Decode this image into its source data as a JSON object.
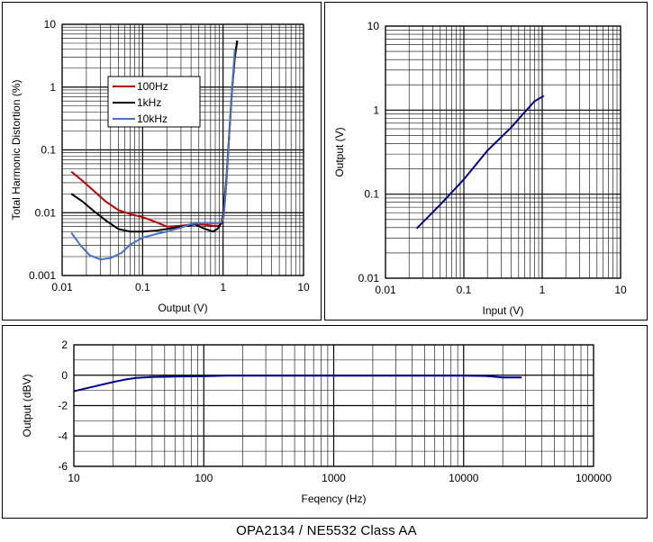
{
  "caption": "OPA2134 / NE5532   Class AA",
  "chart_data": [
    {
      "id": "thd",
      "type": "line",
      "xscale": "log",
      "yscale": "log",
      "xlim": [
        0.01,
        10
      ],
      "ylim": [
        0.001,
        10
      ],
      "xticks": [
        "0.01",
        "0.1",
        "1",
        "10"
      ],
      "yticks": [
        "0.001",
        "0.01",
        "0.1",
        "1",
        "10"
      ],
      "xlabel": "Output (V)",
      "ylabel": "Total Harmonic Distortion (%)",
      "grid": true,
      "legend": "upper-left",
      "series": [
        {
          "name": "100Hz",
          "color": "#c00000",
          "points": [
            [
              0.013,
              0.045
            ],
            [
              0.018,
              0.032
            ],
            [
              0.025,
              0.022
            ],
            [
              0.035,
              0.015
            ],
            [
              0.05,
              0.011
            ],
            [
              0.07,
              0.0095
            ],
            [
              0.1,
              0.0085
            ],
            [
              0.15,
              0.007
            ],
            [
              0.2,
              0.006
            ],
            [
              0.3,
              0.0062
            ],
            [
              0.45,
              0.0066
            ],
            [
              0.6,
              0.0064
            ],
            [
              0.75,
              0.0062
            ],
            [
              0.88,
              0.0062
            ],
            [
              0.96,
              0.0068
            ],
            [
              1.02,
              0.009
            ],
            [
              1.1,
              0.03
            ],
            [
              1.2,
              0.2
            ],
            [
              1.3,
              1.0
            ],
            [
              1.4,
              3.0
            ],
            [
              1.5,
              5.5
            ]
          ]
        },
        {
          "name": "1kHz",
          "color": "#000000",
          "points": [
            [
              0.013,
              0.02
            ],
            [
              0.018,
              0.015
            ],
            [
              0.025,
              0.0105
            ],
            [
              0.035,
              0.0075
            ],
            [
              0.05,
              0.0055
            ],
            [
              0.07,
              0.005
            ],
            [
              0.1,
              0.005
            ],
            [
              0.15,
              0.0052
            ],
            [
              0.2,
              0.0055
            ],
            [
              0.3,
              0.006
            ],
            [
              0.45,
              0.0065
            ],
            [
              0.6,
              0.0055
            ],
            [
              0.75,
              0.005
            ],
            [
              0.85,
              0.0055
            ],
            [
              0.93,
              0.0065
            ],
            [
              1.0,
              0.009
            ],
            [
              1.1,
              0.035
            ],
            [
              1.2,
              0.2
            ],
            [
              1.3,
              1.0
            ],
            [
              1.4,
              3.0
            ],
            [
              1.5,
              5.5
            ]
          ]
        },
        {
          "name": "10kHz",
          "color": "#4472c4",
          "points": [
            [
              0.013,
              0.0048
            ],
            [
              0.017,
              0.003
            ],
            [
              0.022,
              0.0021
            ],
            [
              0.03,
              0.0018
            ],
            [
              0.04,
              0.0019
            ],
            [
              0.055,
              0.0023
            ],
            [
              0.07,
              0.0031
            ],
            [
              0.1,
              0.004
            ],
            [
              0.15,
              0.0046
            ],
            [
              0.2,
              0.005
            ],
            [
              0.3,
              0.0058
            ],
            [
              0.4,
              0.0066
            ],
            [
              0.55,
              0.0068
            ],
            [
              0.7,
              0.0068
            ],
            [
              0.85,
              0.0068
            ],
            [
              0.95,
              0.007
            ],
            [
              1.02,
              0.009
            ],
            [
              1.1,
              0.03
            ],
            [
              1.2,
              0.2
            ],
            [
              1.3,
              1.0
            ],
            [
              1.4,
              4.0
            ]
          ]
        }
      ]
    },
    {
      "id": "io",
      "type": "line",
      "xscale": "log",
      "yscale": "log",
      "xlim": [
        0.01,
        10
      ],
      "ylim": [
        0.01,
        10
      ],
      "xticks": [
        "0.01",
        "0.1",
        "1",
        "10"
      ],
      "yticks": [
        "0.01",
        "0.1",
        "1",
        "10"
      ],
      "xlabel": "Input (V)",
      "ylabel": "Output (V)",
      "grid": true,
      "series": [
        {
          "color": "#00008b",
          "points": [
            [
              0.025,
              0.039
            ],
            [
              0.05,
              0.075
            ],
            [
              0.1,
              0.15
            ],
            [
              0.2,
              0.33
            ],
            [
              0.4,
              0.62
            ],
            [
              0.6,
              0.95
            ],
            [
              0.8,
              1.28
            ],
            [
              1.05,
              1.48
            ]
          ]
        }
      ]
    },
    {
      "id": "freq",
      "type": "line",
      "xscale": "log",
      "yscale": "linear",
      "xlim": [
        10,
        100000
      ],
      "ylim": [
        -6,
        2
      ],
      "xticks": [
        "10",
        "100",
        "1000",
        "10000",
        "100000"
      ],
      "yticks": [
        "-6",
        "-4",
        "-2",
        "0",
        "2"
      ],
      "xlabel": "Feqency (Hz)",
      "ylabel": "Output (dBV)",
      "grid": true,
      "series": [
        {
          "color": "#00008b",
          "points": [
            [
              10,
              -1.05
            ],
            [
              15,
              -0.7
            ],
            [
              20,
              -0.45
            ],
            [
              25,
              -0.28
            ],
            [
              30,
              -0.18
            ],
            [
              40,
              -0.12
            ],
            [
              60,
              -0.09
            ],
            [
              100,
              -0.07
            ],
            [
              150,
              -0.03
            ],
            [
              300,
              -0.03
            ],
            [
              1000,
              -0.03
            ],
            [
              5000,
              -0.03
            ],
            [
              10000,
              -0.03
            ],
            [
              15000,
              -0.05
            ],
            [
              20000,
              -0.15
            ],
            [
              28000,
              -0.15
            ]
          ]
        }
      ]
    }
  ]
}
